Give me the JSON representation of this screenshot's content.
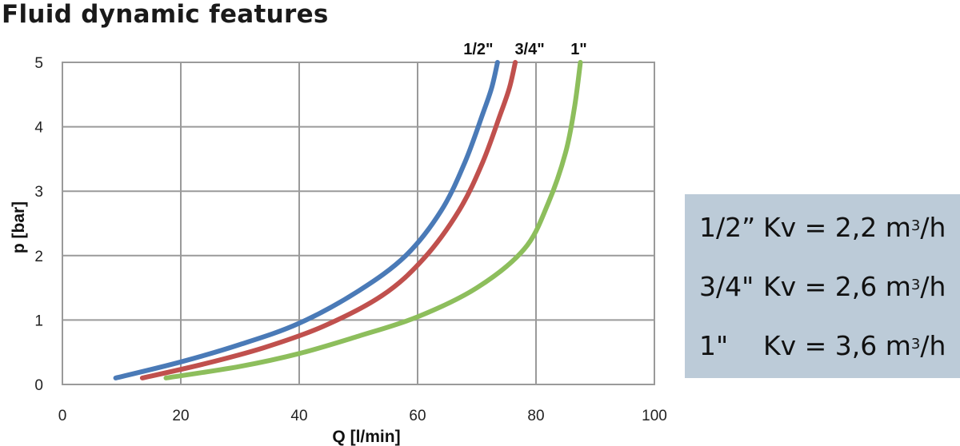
{
  "title": "Fluid dynamic features",
  "chart_data": {
    "type": "line",
    "xlabel": "Q [l/min]",
    "ylabel": "p [bar]",
    "xlim": [
      0,
      100
    ],
    "ylim": [
      0,
      5
    ],
    "xticks": [
      "0",
      "20",
      "40",
      "60",
      "80",
      "100"
    ],
    "yticks": [
      "0",
      "1",
      "2",
      "3",
      "4",
      "5"
    ],
    "grid": true,
    "series": [
      {
        "name": "1/2\"",
        "color": "#4a7ab7",
        "x": [
          9,
          20,
          30,
          40,
          50,
          58,
          64,
          68,
          71,
          72.5,
          73.5
        ],
        "y": [
          0.1,
          0.35,
          0.62,
          0.95,
          1.45,
          2.0,
          2.7,
          3.45,
          4.2,
          4.6,
          5.0
        ]
      },
      {
        "name": "3/4\"",
        "color": "#c0504d",
        "x": [
          13.5,
          24,
          34,
          44,
          54,
          61,
          67,
          71,
          74,
          75.5,
          76.5
        ],
        "y": [
          0.1,
          0.32,
          0.57,
          0.9,
          1.38,
          1.95,
          2.7,
          3.45,
          4.2,
          4.6,
          5.0
        ]
      },
      {
        "name": "1\"",
        "color": "#8dbe5c",
        "x": [
          17.5,
          30,
          40,
          50,
          60,
          70,
          78,
          82,
          85,
          86.5,
          87.5
        ],
        "y": [
          0.1,
          0.28,
          0.48,
          0.75,
          1.05,
          1.5,
          2.1,
          2.8,
          3.6,
          4.3,
          5.0
        ]
      }
    ]
  },
  "kv": [
    {
      "size": "1/2”",
      "formula": "Kv = 2,2 m",
      "exp": "3",
      "unit": "/h"
    },
    {
      "size": "3/4\"",
      "formula": "Kv = 2,6 m",
      "exp": "3",
      "unit": "/h"
    },
    {
      "size": "1\"",
      "formula": "Kv = 3,6 m",
      "exp": "3",
      "unit": "/h"
    }
  ]
}
